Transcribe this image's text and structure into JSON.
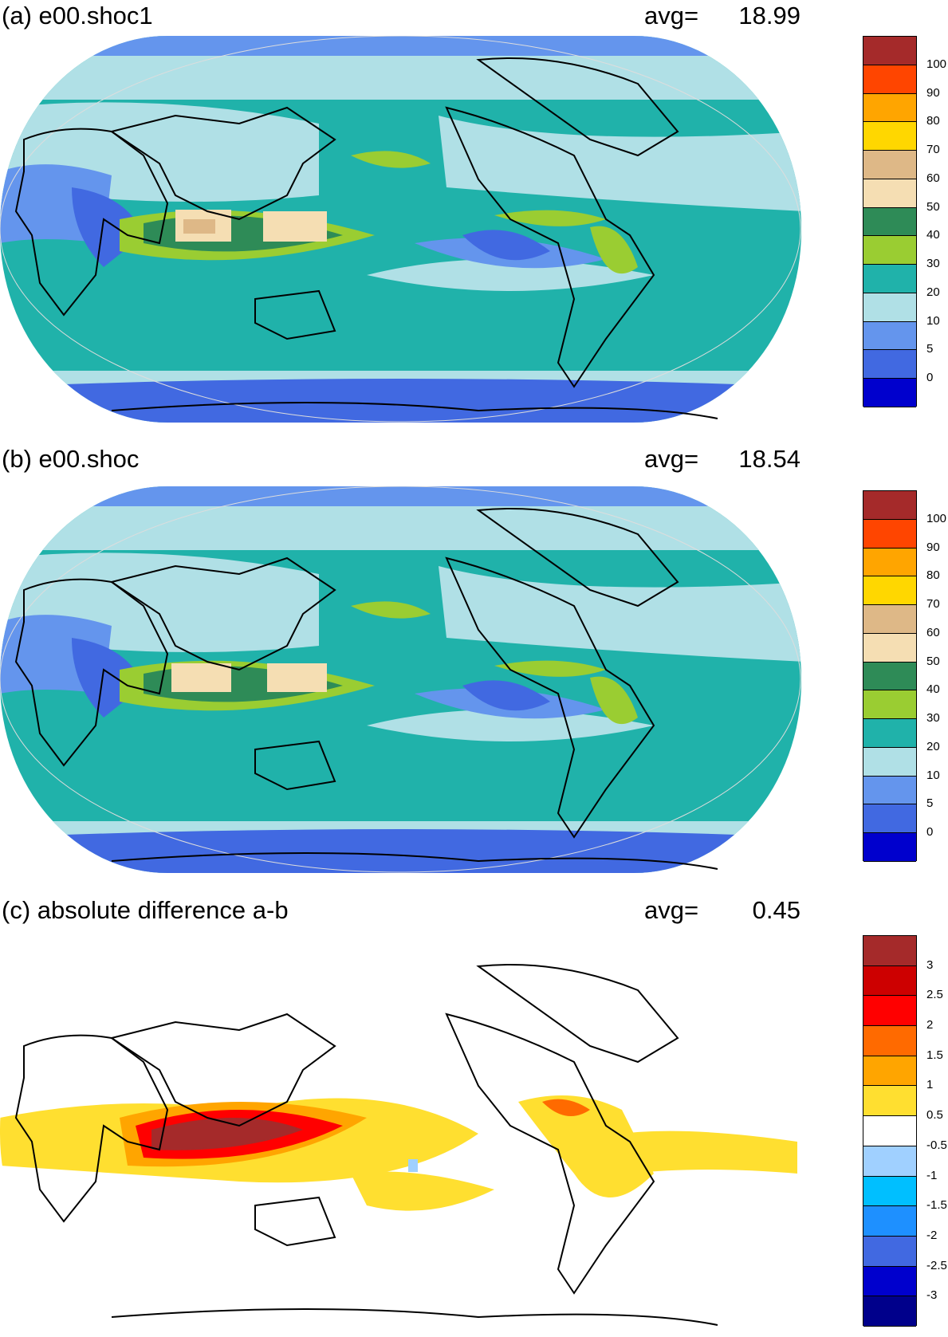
{
  "panels": [
    {
      "title": "(a) e00.shoc1",
      "avg_label": "avg=",
      "avg_value": "18.99",
      "colors": [
        "#a52a2a",
        "#ff4500",
        "#ffa500",
        "#ffd700",
        "#deb887",
        "#f5deb3",
        "#2e8b57",
        "#9acd32",
        "#20b2aa",
        "#b0e0e6",
        "#6495ed",
        "#4169e1",
        "#0000cd"
      ],
      "labels": [
        "100",
        "90",
        "80",
        "70",
        "60",
        "50",
        "40",
        "30",
        "20",
        "10",
        "5",
        "0"
      ]
    },
    {
      "title": "(b) e00.shoc",
      "avg_label": "avg=",
      "avg_value": "18.54",
      "colors": [
        "#a52a2a",
        "#ff4500",
        "#ffa500",
        "#ffd700",
        "#deb887",
        "#f5deb3",
        "#2e8b57",
        "#9acd32",
        "#20b2aa",
        "#b0e0e6",
        "#6495ed",
        "#4169e1",
        "#0000cd"
      ],
      "labels": [
        "100",
        "90",
        "80",
        "70",
        "60",
        "50",
        "40",
        "30",
        "20",
        "10",
        "5",
        "0"
      ]
    },
    {
      "title": "(c) absolute difference a-b",
      "avg_label": "avg=",
      "avg_value": "0.45",
      "colors": [
        "#a52a2a",
        "#cd0000",
        "#ff0000",
        "#ff6a00",
        "#ffa500",
        "#ffdf30",
        "#ffffff",
        "#a0d0ff",
        "#00bfff",
        "#1e90ff",
        "#4169e1",
        "#0000cd",
        "#00008b"
      ],
      "labels": [
        "3",
        "2.5",
        "2",
        "1.5",
        "1",
        "0.5",
        "-0.5",
        "-1",
        "-1.5",
        "-2",
        "-2.5",
        "-3"
      ]
    }
  ]
}
